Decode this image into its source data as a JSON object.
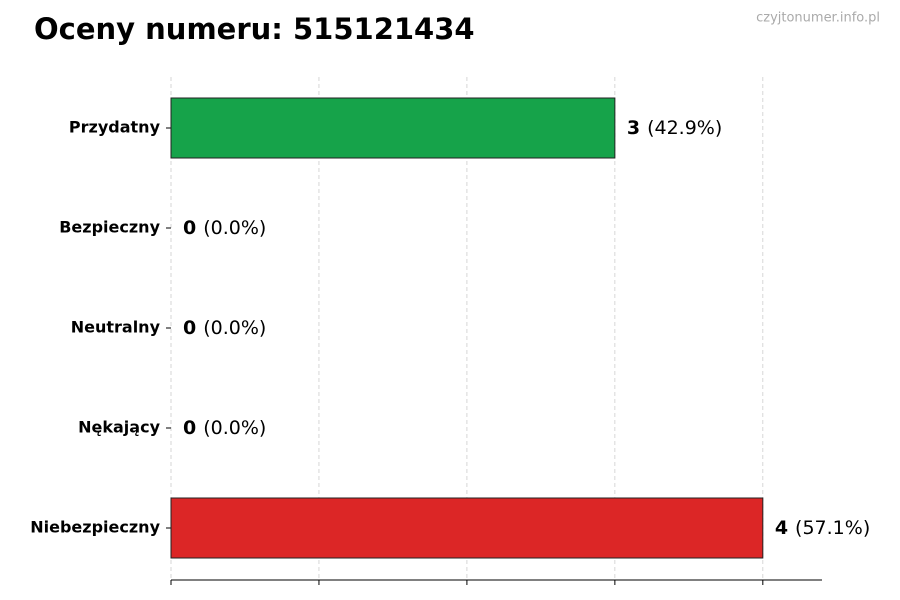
{
  "chart_data": {
    "type": "barh",
    "title": "Oceny numeru: 515121434",
    "watermark": "czyjtonumer.info.pl",
    "categories": [
      "Przydatny",
      "Bezpieczny",
      "Neutralny",
      "Nękający",
      "Niebezpieczny"
    ],
    "values": [
      3,
      0,
      0,
      0,
      4
    ],
    "share_labels": [
      "(42.9%)",
      "(0.0%)",
      "(0.0%)",
      "(0.0%)",
      "(57.1%)"
    ],
    "colors": [
      "#16a34a",
      "#16a34a",
      "#9ca3af",
      "#dc2626",
      "#dc2626"
    ],
    "xlim": [
      0,
      4.4
    ],
    "xticks": [
      0,
      1,
      2,
      3,
      4
    ],
    "grid": true
  }
}
